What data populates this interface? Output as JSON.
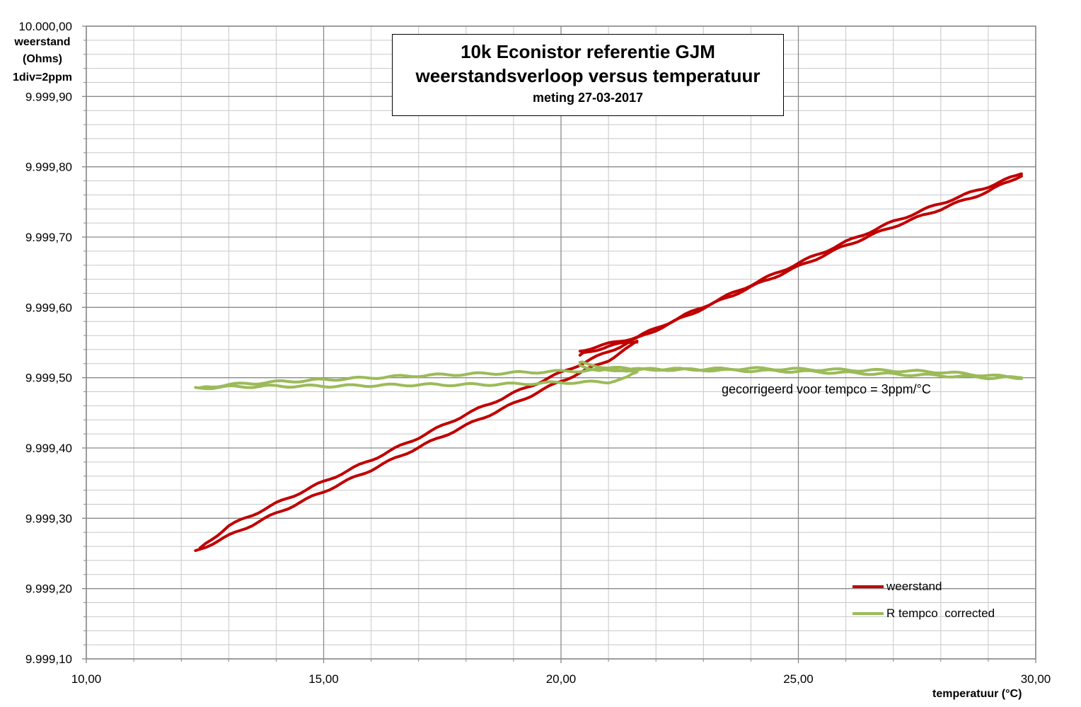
{
  "chart_data": {
    "type": "line",
    "title": "10k Econistor referentie GJM",
    "subtitle": "weerstandsverloop versus temperatuur",
    "subtitle2": "meting 27-03-2017",
    "xlabel": "temperatuur (°C)",
    "ylabel_lines": [
      "weerstand",
      "(Ohms)",
      "1div=2ppm"
    ],
    "xlim": [
      10,
      30
    ],
    "ylim": [
      9999.1,
      10000.0
    ],
    "x_ticks": [
      "10,00",
      "15,00",
      "20,00",
      "25,00",
      "30,00"
    ],
    "x_tick_values": [
      10,
      15,
      20,
      25,
      30
    ],
    "y_ticks": [
      "10.000,00",
      "9.999,90",
      "9.999,80",
      "9.999,70",
      "9.999,60",
      "9.999,50",
      "9.999,40",
      "9.999,30",
      "9.999,20",
      "9.999,10"
    ],
    "y_tick_values": [
      10000.0,
      9999.9,
      9999.8,
      9999.7,
      9999.6,
      9999.5,
      9999.4,
      9999.3,
      9999.2,
      9999.1
    ],
    "x_minor_step": 1,
    "y_minor_step": 0.02,
    "grid": true,
    "legend_position": "bottom-right",
    "annotation": "gecorrigeerd voor tempco = 3ppm/°C",
    "series": [
      {
        "name": "weerstand",
        "color": "#c00000",
        "segments": [
          {
            "x": [
              12.3,
              13.0,
              14.0,
              15.0,
              16.0,
              17.0,
              18.0,
              19.0,
              20.0,
              20.5,
              21.0,
              21.5,
              21.6
            ],
            "y": [
              9999.253,
              9999.275,
              9999.307,
              9999.338,
              9999.369,
              9999.401,
              9999.432,
              9999.463,
              9999.495,
              9999.51,
              9999.525,
              9999.546,
              9999.552
            ]
          },
          {
            "x": [
              21.6,
              21.0,
              20.5,
              20.4
            ],
            "y": [
              9999.552,
              9999.545,
              9999.535,
              9999.532
            ]
          },
          {
            "x": [
              20.4,
              20.5,
              21.0,
              21.6,
              22.0,
              23.0,
              24.0,
              25.0,
              26.0,
              27.0,
              28.0,
              29.0,
              29.7
            ],
            "y": [
              9999.538,
              9999.54,
              9999.548,
              9999.558,
              9999.57,
              9999.601,
              9999.632,
              9999.663,
              9999.693,
              9999.722,
              9999.748,
              9999.772,
              9999.79
            ]
          },
          {
            "x": [
              29.7,
              29.0,
              28.0,
              27.0,
              26.0,
              25.0,
              24.0,
              23.0,
              22.0,
              21.0,
              20.0,
              19.0,
              18.0,
              17.0,
              16.0,
              15.0,
              14.0,
              13.0,
              12.4
            ],
            "y": [
              9999.788,
              9999.765,
              9999.74,
              9999.715,
              9999.688,
              9999.658,
              9999.629,
              9999.599,
              9999.568,
              9999.537,
              9999.507,
              9999.478,
              9999.448,
              9999.415,
              9999.383,
              9999.352,
              9999.321,
              9999.289,
              9999.258
            ]
          }
        ]
      },
      {
        "name": "R tempco  corrected",
        "color": "#9bbb59",
        "segments": [
          {
            "x": [
              12.3,
              13.0,
              14.0,
              15.0,
              16.0,
              17.0,
              18.0,
              19.0,
              20.0,
              21.0,
              21.4,
              21.6
            ],
            "y": [
              9999.485,
              9999.487,
              9999.488,
              9999.488,
              9999.489,
              9999.49,
              9999.49,
              9999.491,
              9999.493,
              9999.494,
              9999.5,
              9999.508
            ]
          },
          {
            "x": [
              21.6,
              21.0,
              20.5,
              20.4
            ],
            "y": [
              9999.512,
              9999.514,
              9999.52,
              9999.522
            ]
          },
          {
            "x": [
              20.4,
              20.8,
              21.5,
              22.0,
              23.0,
              24.0,
              25.0,
              26.0,
              27.0,
              28.0,
              29.0,
              29.7
            ],
            "y": [
              9999.518,
              9999.51,
              9999.511,
              9999.512,
              9999.511,
              9999.51,
              9999.509,
              9999.507,
              9999.505,
              9999.503,
              9999.5,
              9999.5
            ]
          },
          {
            "x": [
              29.7,
              29.0,
              28.0,
              27.0,
              26.0,
              25.0,
              24.0,
              23.0,
              22.0,
              21.0,
              20.0,
              19.0,
              18.0,
              17.0,
              16.0,
              15.0,
              14.0,
              13.0,
              12.4
            ],
            "y": [
              9999.5,
              9999.503,
              9999.508,
              9999.51,
              9999.511,
              9999.512,
              9999.513,
              9999.512,
              9999.512,
              9999.511,
              9999.509,
              9999.507,
              9999.505,
              9999.503,
              9999.5,
              9999.497,
              9999.494,
              9999.49,
              9999.486
            ]
          }
        ]
      }
    ]
  }
}
